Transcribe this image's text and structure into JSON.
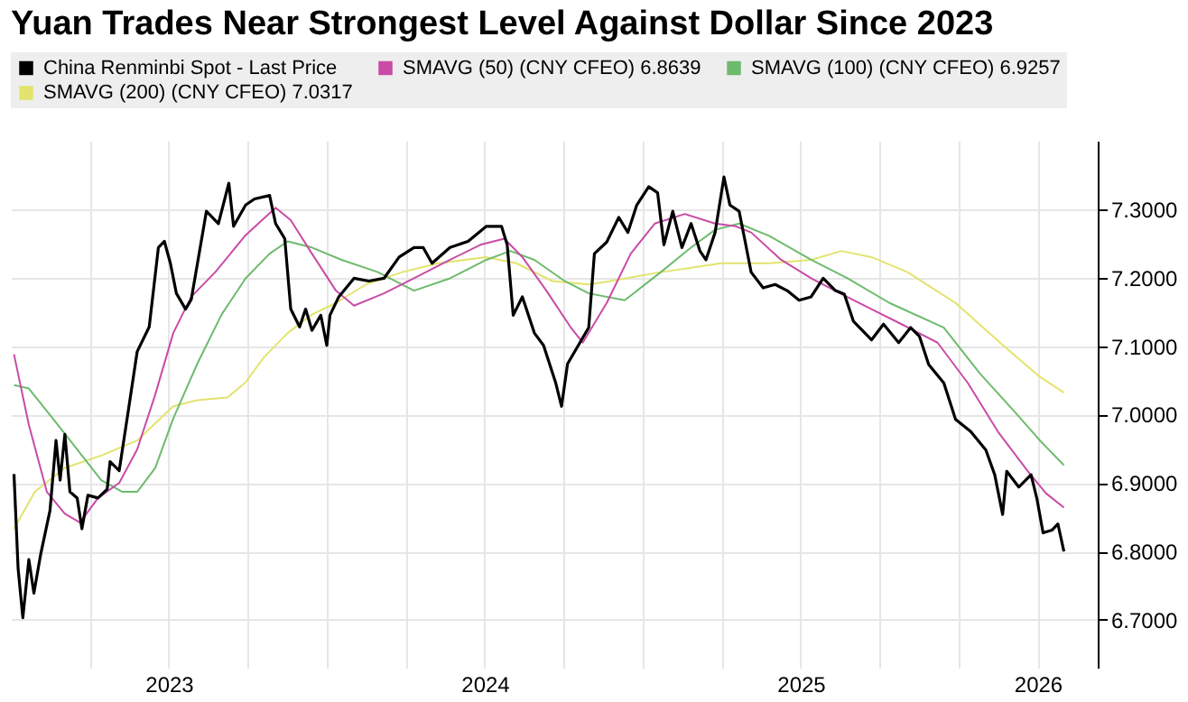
{
  "chart_data": {
    "type": "line",
    "title": "Yuan Trades Near Strongest Level Against Dollar Since 2023",
    "xlim": [
      2023,
      2026.44
    ],
    "xticks": [
      {
        "value": 2023.25,
        "label": null
      },
      {
        "value": 2023.5,
        "label": "2023"
      },
      {
        "value": 2023.75,
        "label": null
      },
      {
        "value": 2024,
        "label": null
      },
      {
        "value": 2024.25,
        "label": null
      },
      {
        "value": 2024.5,
        "label": "2024"
      },
      {
        "value": 2024.75,
        "label": null
      },
      {
        "value": 2025,
        "label": null
      },
      {
        "value": 2025.25,
        "label": null
      },
      {
        "value": 2025.5,
        "label": "2025"
      },
      {
        "value": 2025.75,
        "label": null
      },
      {
        "value": 2026,
        "label": null
      },
      {
        "value": 2026.25,
        "label": "2026"
      }
    ],
    "ylim": [
      6.63,
      7.4
    ],
    "yticks": [
      {
        "value": 6.7,
        "label": "6.7000"
      },
      {
        "value": 6.8,
        "label": "6.8000"
      },
      {
        "value": 6.9,
        "label": "6.9000"
      },
      {
        "value": 7,
        "label": "7.0000"
      },
      {
        "value": 7.1,
        "label": "7.1000"
      },
      {
        "value": 7.2,
        "label": "7.2000"
      },
      {
        "value": 7.3,
        "label": "7.3000"
      }
    ],
    "grid": true,
    "legend": "top left",
    "series": [
      {
        "name": "China Renminbi Spot - Last Price",
        "color": "#000000",
        "x": [
          2023.01,
          2023.023,
          2023.038,
          2023.057,
          2023.073,
          2023.095,
          2023.124,
          2023.143,
          2023.156,
          2023.171,
          2023.187,
          2023.21,
          2023.225,
          2023.244,
          2023.276,
          2023.305,
          2023.314,
          2023.343,
          2023.371,
          2023.4,
          2023.438,
          2023.467,
          2023.486,
          2023.505,
          2023.524,
          2023.553,
          2023.571,
          2023.619,
          2023.657,
          2023.69,
          2023.705,
          2023.743,
          2023.771,
          2023.819,
          2023.838,
          2023.867,
          2023.886,
          2023.914,
          2023.933,
          2023.953,
          2023.981,
          2024.0,
          2024.01,
          2024.038,
          2024.086,
          2024.133,
          2024.181,
          2024.229,
          2024.276,
          2024.305,
          2024.333,
          2024.39,
          2024.447,
          2024.505,
          2024.553,
          2024.571,
          2024.59,
          2024.619,
          2024.657,
          2024.686,
          2024.724,
          2024.743,
          2024.762,
          2024.829,
          2024.847,
          2024.886,
          2024.924,
          2024.953,
          2024.981,
          2025.019,
          2025.047,
          2025.067,
          2025.095,
          2025.124,
          2025.153,
          2025.181,
          2025.2,
          2025.229,
          2025.257,
          2025.276,
          2025.305,
          2025.324,
          2025.343,
          2025.381,
          2025.419,
          2025.457,
          2025.495,
          2025.533,
          2025.571,
          2025.61,
          2025.638,
          2025.667,
          2025.724,
          2025.762,
          2025.81,
          2025.848,
          2025.876,
          2025.905,
          2025.953,
          2025.99,
          2026.038,
          2026.086,
          2026.114,
          2026.139,
          2026.152,
          2026.19,
          2026.229,
          2026.248,
          2026.267,
          2026.295,
          2026.314,
          2026.333
        ],
        "values": [
          6.913,
          6.775,
          6.703,
          6.788,
          6.739,
          6.797,
          6.86,
          6.962,
          6.904,
          6.971,
          6.887,
          6.878,
          6.833,
          6.882,
          6.878,
          6.891,
          6.931,
          6.918,
          7.003,
          7.092,
          7.128,
          7.244,
          7.253,
          7.221,
          7.177,
          7.154,
          7.168,
          7.297,
          7.279,
          7.338,
          7.275,
          7.306,
          7.315,
          7.32,
          7.279,
          7.257,
          7.154,
          7.128,
          7.154,
          7.123,
          7.145,
          7.101,
          7.145,
          7.172,
          7.199,
          7.195,
          7.199,
          7.23,
          7.244,
          7.244,
          7.221,
          7.244,
          7.253,
          7.275,
          7.275,
          7.248,
          7.145,
          7.172,
          7.119,
          7.101,
          7.047,
          7.012,
          7.074,
          7.127,
          7.235,
          7.252,
          7.288,
          7.266,
          7.306,
          7.333,
          7.324,
          7.248,
          7.297,
          7.244,
          7.279,
          7.239,
          7.226,
          7.266,
          7.347,
          7.306,
          7.297,
          7.253,
          7.208,
          7.185,
          7.19,
          7.181,
          7.167,
          7.172,
          7.199,
          7.181,
          7.176,
          7.136,
          7.109,
          7.132,
          7.105,
          7.127,
          7.114,
          7.073,
          7.046,
          6.993,
          6.975,
          6.948,
          6.912,
          6.854,
          6.917,
          6.894,
          6.912,
          6.876,
          6.827,
          6.831,
          6.84,
          6.8
        ]
      },
      {
        "name": "SMAVG (50) (CNY CFEO) 6.8639",
        "color": "#c94ba6",
        "x": [
          2023.01,
          2023.057,
          2023.114,
          2023.171,
          2023.219,
          2023.276,
          2023.343,
          2023.4,
          2023.457,
          2023.514,
          2023.571,
          2023.647,
          2023.743,
          2023.838,
          2023.886,
          2023.953,
          2024.029,
          2024.086,
          2024.181,
          2024.276,
          2024.39,
          2024.486,
          2024.562,
          2024.619,
          2024.695,
          2024.771,
          2024.81,
          2024.886,
          2024.962,
          2025.038,
          2025.133,
          2025.229,
          2025.295,
          2025.343,
          2025.438,
          2025.533,
          2025.629,
          2025.724,
          2025.819,
          2025.933,
          2026.029,
          2026.124,
          2026.219,
          2026.276,
          2026.333
        ],
        "values": [
          7.088,
          6.985,
          6.887,
          6.855,
          6.842,
          6.878,
          6.9,
          6.949,
          7.029,
          7.119,
          7.172,
          7.208,
          7.262,
          7.302,
          7.284,
          7.235,
          7.181,
          7.159,
          7.177,
          7.199,
          7.226,
          7.248,
          7.257,
          7.23,
          7.181,
          7.128,
          7.105,
          7.163,
          7.235,
          7.279,
          7.293,
          7.279,
          7.275,
          7.266,
          7.226,
          7.199,
          7.176,
          7.154,
          7.132,
          7.105,
          7.046,
          6.975,
          6.917,
          6.885,
          6.864
        ]
      },
      {
        "name": "SMAVG (100) (CNY CFEO) 6.9257",
        "color": "#6dbb6d",
        "x": [
          2023.01,
          2023.057,
          2023.133,
          2023.21,
          2023.286,
          2023.353,
          2023.4,
          2023.457,
          2023.514,
          2023.59,
          2023.667,
          2023.743,
          2023.819,
          2023.876,
          2023.953,
          2024.047,
          2024.162,
          2024.276,
          2024.39,
          2024.505,
          2024.581,
          2024.657,
          2024.753,
          2024.829,
          2024.943,
          2025.057,
          2025.153,
          2025.229,
          2025.305,
          2025.4,
          2025.533,
          2025.648,
          2025.781,
          2025.953,
          2026.067,
          2026.181,
          2026.257,
          2026.333
        ],
        "values": [
          7.043,
          7.038,
          6.994,
          6.949,
          6.904,
          6.887,
          6.887,
          6.922,
          6.994,
          7.074,
          7.146,
          7.199,
          7.235,
          7.253,
          7.244,
          7.226,
          7.208,
          7.181,
          7.199,
          7.226,
          7.239,
          7.226,
          7.195,
          7.177,
          7.167,
          7.208,
          7.244,
          7.27,
          7.279,
          7.261,
          7.226,
          7.199,
          7.163,
          7.127,
          7.06,
          7.002,
          6.962,
          6.926
        ]
      },
      {
        "name": "SMAVG (200) (CNY CFEO) 7.0317",
        "color": "#e3e36e",
        "x": [
          2023.01,
          2023.076,
          2023.171,
          2023.286,
          2023.4,
          2023.514,
          2023.59,
          2023.686,
          2023.743,
          2023.8,
          2023.876,
          2023.953,
          2024.029,
          2024.124,
          2024.238,
          2024.353,
          2024.505,
          2024.6,
          2024.714,
          2024.829,
          2024.886,
          2025.057,
          2025.248,
          2025.4,
          2025.533,
          2025.629,
          2025.724,
          2025.838,
          2025.99,
          2026.143,
          2026.257,
          2026.333
        ],
        "values": [
          6.833,
          6.887,
          6.922,
          6.94,
          6.962,
          7.012,
          7.021,
          7.025,
          7.047,
          7.083,
          7.119,
          7.146,
          7.163,
          7.19,
          7.208,
          7.221,
          7.23,
          7.221,
          7.195,
          7.19,
          7.194,
          7.208,
          7.221,
          7.221,
          7.226,
          7.239,
          7.23,
          7.208,
          7.163,
          7.1,
          7.055,
          7.032
        ]
      }
    ]
  }
}
